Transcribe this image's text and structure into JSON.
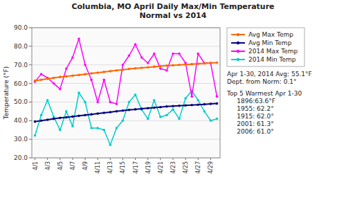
{
  "chart_data": {
    "type": "line",
    "title": "Columbia, MO April Daily Max/Min Temperature\nNormal vs 2014",
    "ylabel": "Temperature (°F)",
    "annotations": [
      "Apr 1-30, 2014 Avg: 55.1°F\nDept. from Norm: 0.1°",
      "Top 5 Warmest Apr 1-30\n     1896:63.6°F\n     1955: 62.2°\n     1915: 62.0°\n     2001: 61.3°\n     2006: 61.0°"
    ],
    "x": [
      1,
      2,
      3,
      4,
      5,
      6,
      7,
      8,
      9,
      10,
      11,
      12,
      13,
      14,
      15,
      16,
      17,
      18,
      19,
      20,
      21,
      22,
      23,
      24,
      25,
      26,
      27,
      28,
      29,
      30
    ],
    "xlim": [
      0.5,
      30.5
    ],
    "xticks": [
      {
        "value": 1,
        "label": "4/1"
      },
      {
        "value": 3,
        "label": "4/3"
      },
      {
        "value": 5,
        "label": "4/5"
      },
      {
        "value": 7,
        "label": "4/7"
      },
      {
        "value": 9,
        "label": "4/9"
      },
      {
        "value": 11,
        "label": "4/11"
      },
      {
        "value": 13,
        "label": "4/13"
      },
      {
        "value": 15,
        "label": "4/15"
      },
      {
        "value": 17,
        "label": "4/17"
      },
      {
        "value": 19,
        "label": "4/19"
      },
      {
        "value": 21,
        "label": "4/21"
      },
      {
        "value": 23,
        "label": "4/23"
      },
      {
        "value": 25,
        "label": "4/25"
      },
      {
        "value": 27,
        "label": "4/27"
      },
      {
        "value": 29,
        "label": "4/29"
      }
    ],
    "ylim": [
      20.0,
      90.0
    ],
    "yticks": [
      {
        "value": 20.0,
        "label": "20.0"
      },
      {
        "value": 30.0,
        "label": "30.0"
      },
      {
        "value": 40.0,
        "label": "40.0"
      },
      {
        "value": 50.0,
        "label": "50.0"
      },
      {
        "value": 60.0,
        "label": "60.0"
      },
      {
        "value": 70.0,
        "label": "70.0"
      },
      {
        "value": 80.0,
        "label": "80.0"
      },
      {
        "value": 90.0,
        "label": "90.0"
      }
    ],
    "grid": true,
    "legend": "right",
    "series": [
      {
        "name": "Avg Max Temp",
        "color": "#ff6600",
        "marker": "circle",
        "values": [
          61.5,
          62.0,
          62.5,
          63.0,
          63.5,
          63.8,
          64.2,
          64.6,
          65.0,
          65.4,
          65.8,
          66.2,
          66.6,
          67.0,
          67.4,
          67.8,
          68.1,
          68.4,
          68.7,
          69.0,
          69.3,
          69.6,
          69.8,
          70.0,
          70.2,
          70.4,
          70.6,
          70.8,
          71.0,
          71.2
        ]
      },
      {
        "name": "Avg Min Temp",
        "color": "#000080",
        "marker": "circle",
        "values": [
          39.5,
          40.0,
          40.5,
          41.0,
          41.5,
          41.8,
          42.2,
          42.6,
          43.0,
          43.4,
          43.8,
          44.2,
          44.6,
          45.0,
          45.4,
          45.8,
          46.1,
          46.4,
          46.7,
          47.0,
          47.3,
          47.6,
          47.8,
          48.0,
          48.2,
          48.4,
          48.6,
          48.8,
          49.0,
          49.2
        ]
      },
      {
        "name": "2014 Max Temp",
        "color": "#ff00ff",
        "marker": "circle",
        "values": [
          61,
          65,
          63,
          60,
          57,
          68,
          74,
          84,
          70,
          62,
          50,
          62,
          50,
          49,
          70,
          75,
          81,
          74,
          71,
          76,
          68,
          67,
          76,
          76,
          71,
          53,
          76,
          71,
          71,
          53
        ]
      },
      {
        "name": "2014 Min Temp",
        "color": "#00cccc",
        "marker": "circle",
        "values": [
          32,
          43,
          51,
          42,
          35,
          45,
          37,
          55,
          50,
          36,
          36,
          35,
          27,
          36,
          40,
          50,
          54,
          46,
          41,
          51,
          42,
          43,
          46,
          41,
          52,
          56,
          51,
          45,
          40,
          41
        ]
      }
    ]
  }
}
